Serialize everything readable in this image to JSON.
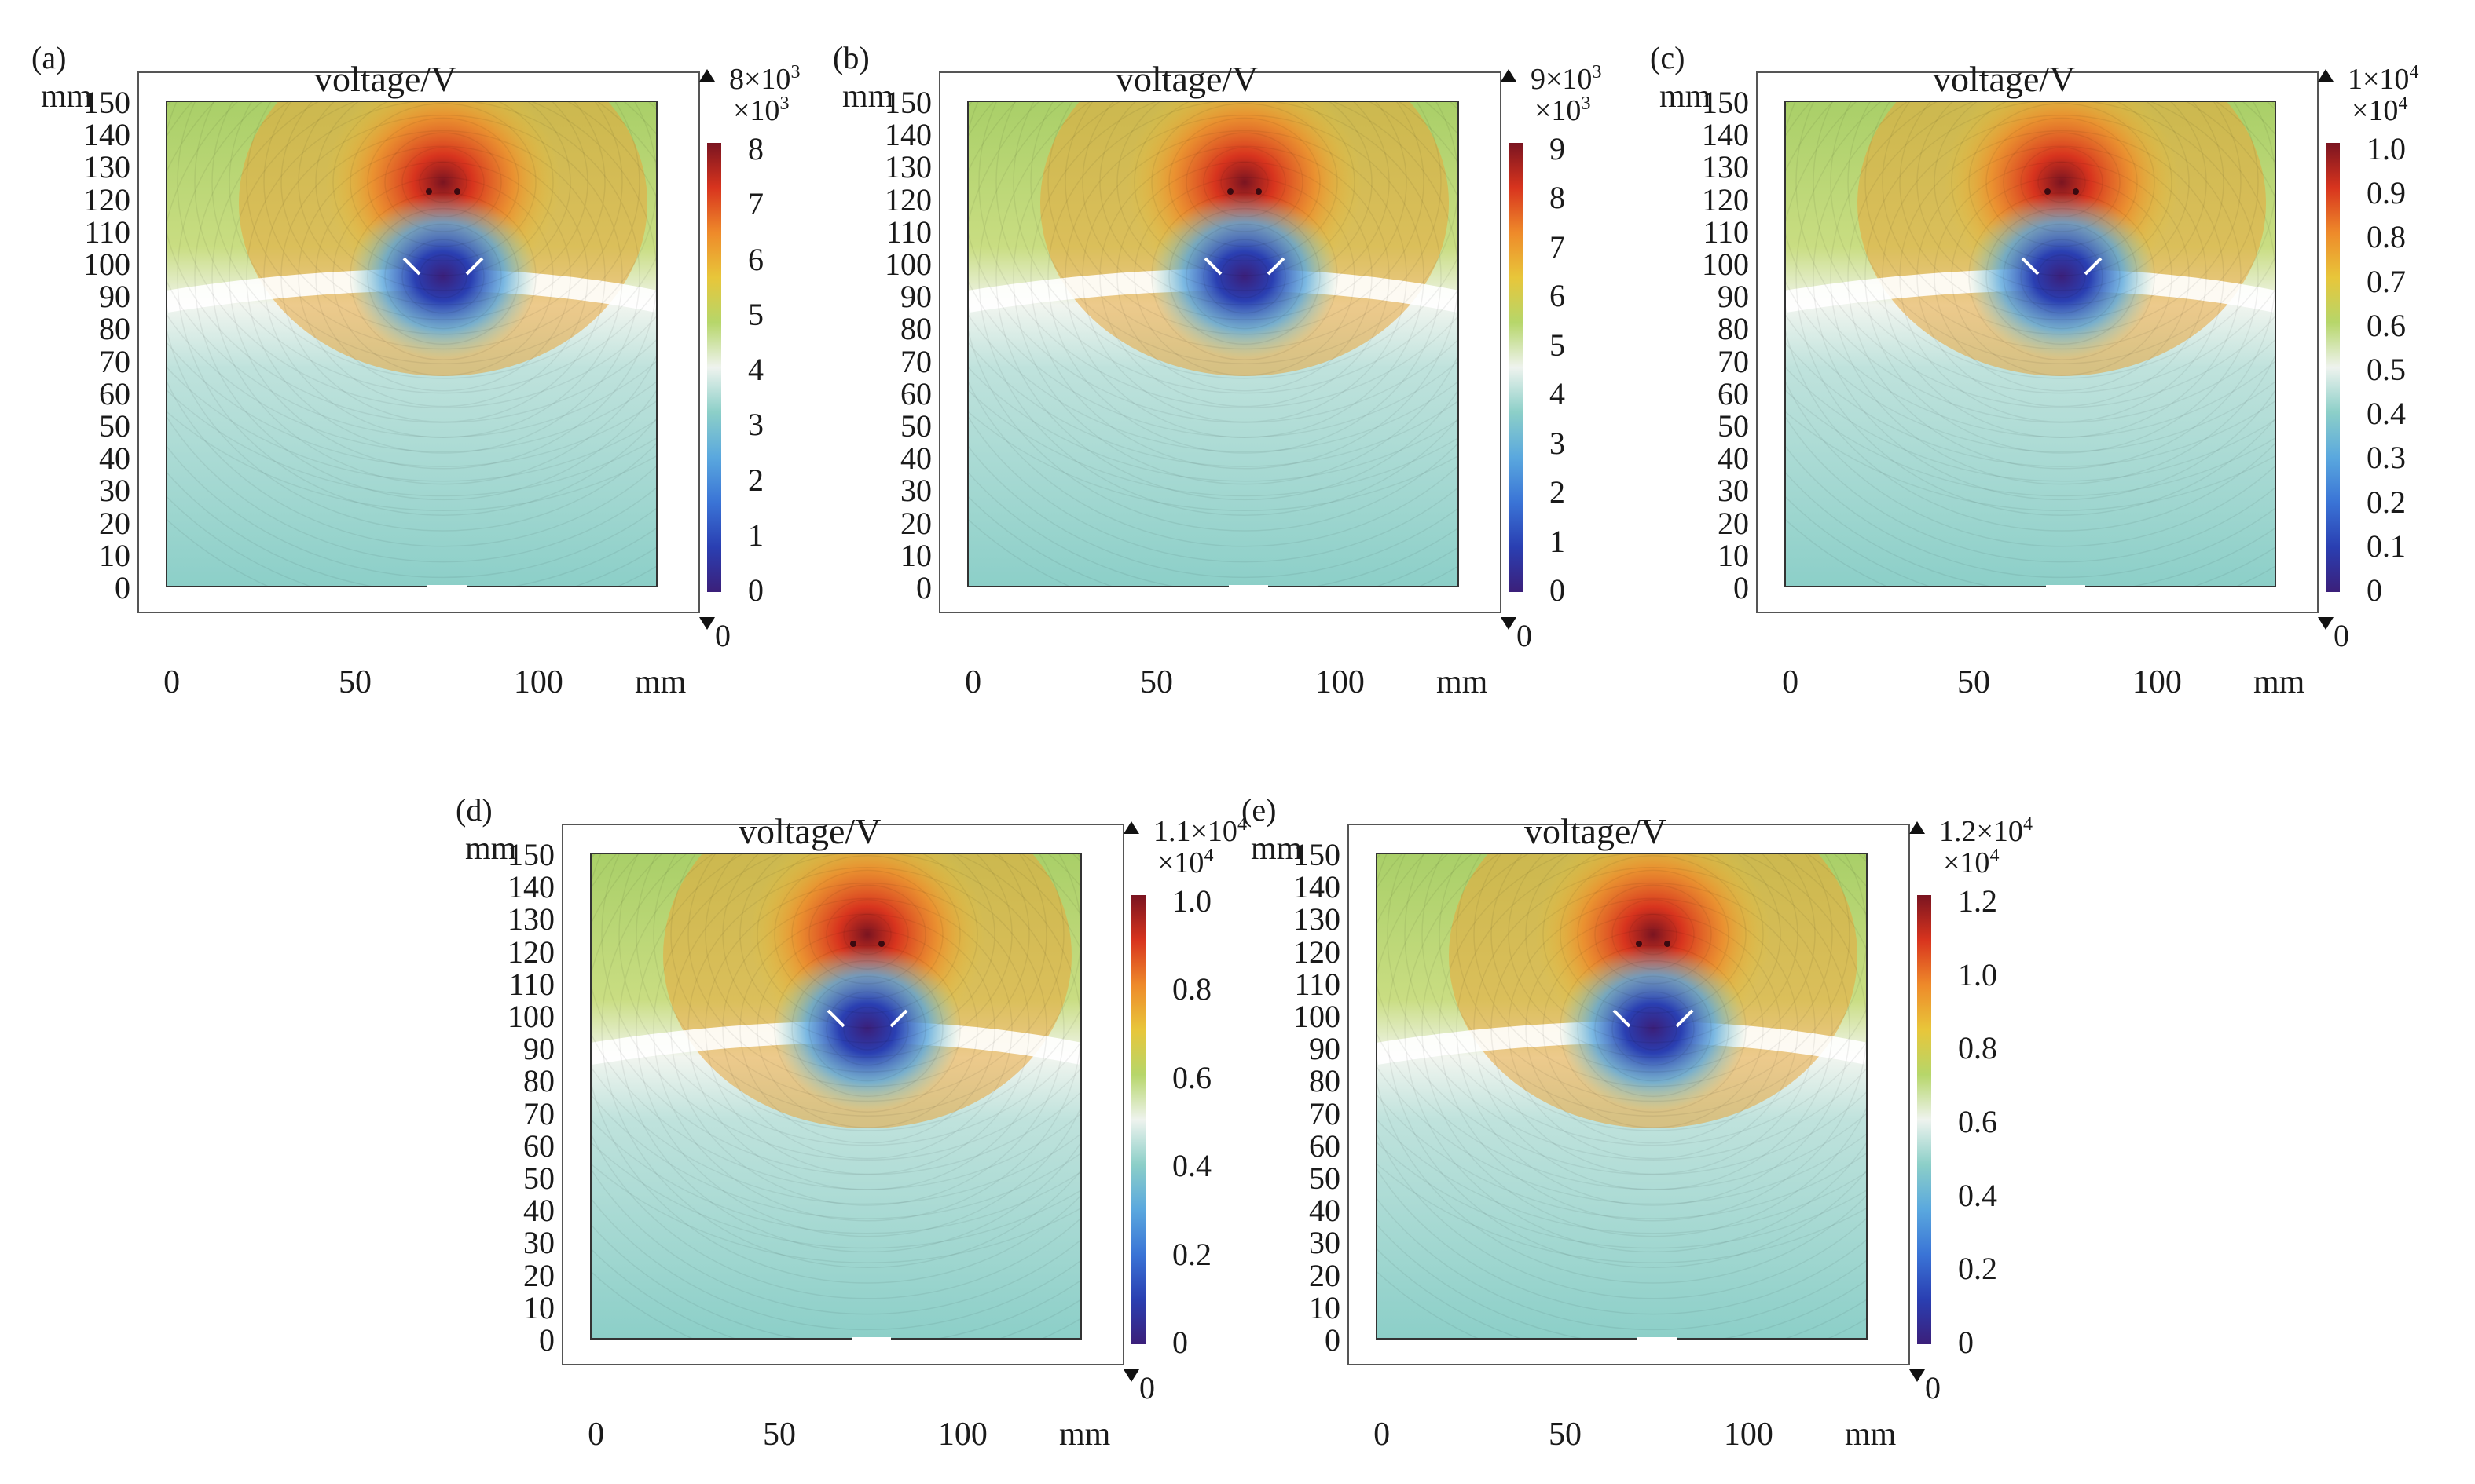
{
  "panels": [
    {
      "label": "(a)",
      "title": "voltage/V",
      "y_unit": "mm",
      "x_unit": "mm",
      "y_ticks": [
        "150",
        "140",
        "130",
        "120",
        "110",
        "100",
        "90",
        "80",
        "70",
        "60",
        "50",
        "40",
        "30",
        "20",
        "10",
        "0"
      ],
      "x_ticks": [
        "0",
        "50",
        "100"
      ],
      "color_max": "8×10",
      "color_max_exp": "3",
      "color_multiplier": "×10",
      "color_multiplier_exp": "3",
      "color_min": "0",
      "color_ticks": [
        "8",
        "7",
        "6",
        "5",
        "4",
        "3",
        "2",
        "1",
        "0"
      ]
    },
    {
      "label": "(b)",
      "title": "voltage/V",
      "y_unit": "mm",
      "x_unit": "mm",
      "y_ticks": [
        "150",
        "140",
        "130",
        "120",
        "110",
        "100",
        "90",
        "80",
        "70",
        "60",
        "50",
        "40",
        "30",
        "20",
        "10",
        "0"
      ],
      "x_ticks": [
        "0",
        "50",
        "100"
      ],
      "color_max": "9×10",
      "color_max_exp": "3",
      "color_multiplier": "×10",
      "color_multiplier_exp": "3",
      "color_min": "0",
      "color_ticks": [
        "9",
        "8",
        "7",
        "6",
        "5",
        "4",
        "3",
        "2",
        "1",
        "0"
      ]
    },
    {
      "label": "(c)",
      "title": "voltage/V",
      "y_unit": "mm",
      "x_unit": "mm",
      "y_ticks": [
        "150",
        "140",
        "130",
        "120",
        "110",
        "100",
        "90",
        "80",
        "70",
        "60",
        "50",
        "40",
        "30",
        "20",
        "10",
        "0"
      ],
      "x_ticks": [
        "0",
        "50",
        "100"
      ],
      "color_max": "1×10",
      "color_max_exp": "4",
      "color_multiplier": "×10",
      "color_multiplier_exp": "4",
      "color_min": "0",
      "color_ticks": [
        "1.0",
        "0.9",
        "0.8",
        "0.7",
        "0.6",
        "0.5",
        "0.4",
        "0.3",
        "0.2",
        "0.1",
        "0"
      ]
    },
    {
      "label": "(d)",
      "title": "voltage/V",
      "y_unit": "mm",
      "x_unit": "mm",
      "y_ticks": [
        "150",
        "140",
        "130",
        "120",
        "110",
        "100",
        "90",
        "80",
        "70",
        "60",
        "50",
        "40",
        "30",
        "20",
        "10",
        "0"
      ],
      "x_ticks": [
        "0",
        "50",
        "100"
      ],
      "color_max": "1.1×10",
      "color_max_exp": "4",
      "color_multiplier": "×10",
      "color_multiplier_exp": "4",
      "color_min": "0",
      "color_ticks": [
        "1.0",
        "0.8",
        "0.6",
        "0.4",
        "0.2",
        "0"
      ]
    },
    {
      "label": "(e)",
      "title": "voltage/V",
      "y_unit": "mm",
      "x_unit": "mm",
      "y_ticks": [
        "150",
        "140",
        "130",
        "120",
        "110",
        "100",
        "90",
        "80",
        "70",
        "60",
        "50",
        "40",
        "30",
        "20",
        "10",
        "0"
      ],
      "x_ticks": [
        "0",
        "50",
        "100"
      ],
      "color_max": "1.2×10",
      "color_max_exp": "4",
      "color_multiplier": "×10",
      "color_multiplier_exp": "4",
      "color_min": "0",
      "color_ticks": [
        "1.2",
        "1.0",
        "0.8",
        "0.6",
        "0.4",
        "0.2",
        "0"
      ]
    }
  ],
  "colors": {
    "colormap": [
      "#3b1f7a",
      "#2a3fb2",
      "#3a74d6",
      "#5aa8de",
      "#8ccfc8",
      "#eef3ee",
      "#b6d66a",
      "#e8c63a",
      "#ee8a2a",
      "#d8341e",
      "#7a1420"
    ]
  }
}
